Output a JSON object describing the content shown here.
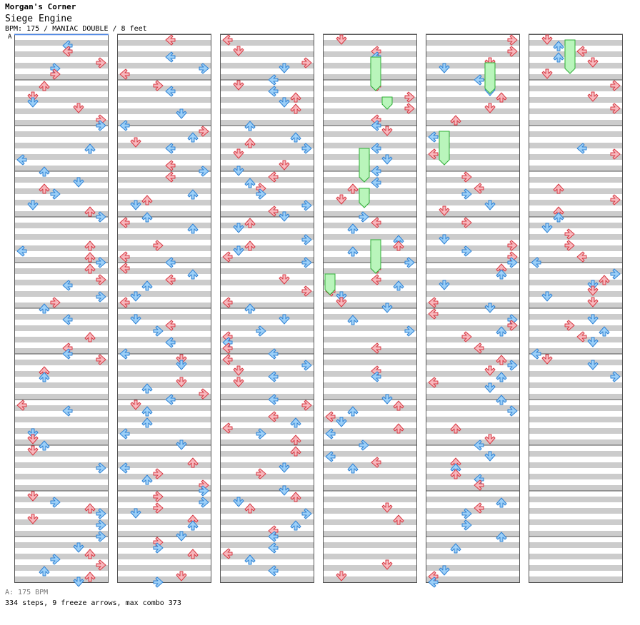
{
  "header": {
    "site_name": "Morgan's Corner",
    "song_title": "Siege Engine",
    "meta_line": "BPM: 175 / MANIAC DOUBLE / 8 feet",
    "bpm_marker": "A"
  },
  "footer": {
    "bpm_legend": "A: 175 BPM",
    "stats_line": "334 steps, 9 freeze arrows, max combo 373"
  },
  "chart_data": {
    "type": "step-chart",
    "mode": "double (8 panels)",
    "columns": 6,
    "measures_per_column": 12,
    "measure_count": 72,
    "bpm": 175,
    "steps": 334,
    "freeze_arrows": 9,
    "max_combo": 373,
    "colors": {
      "red_arrow_fill": "#f7b7bc",
      "red_arrow_stroke": "#d83a44",
      "blue_arrow_fill": "#9ccff7",
      "blue_arrow_stroke": "#2f83d6",
      "freeze_fill": "#b9f5bb",
      "freeze_stroke": "#2eae36",
      "stripe": "#cccccc",
      "bpm_line": "#4a86e8"
    }
  }
}
